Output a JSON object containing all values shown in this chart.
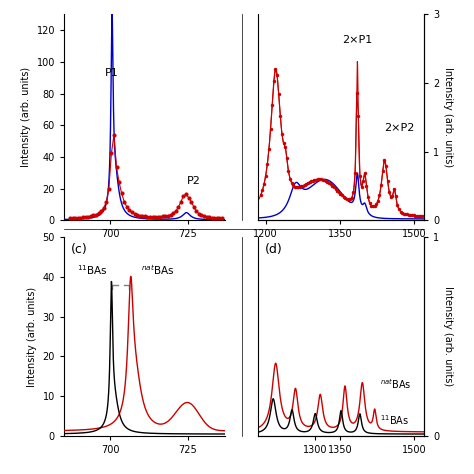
{
  "color_red": "#cc0000",
  "color_blue": "#0000cc",
  "color_black": "#000000",
  "color_gray": "#888888",
  "panel_a": {
    "xlim": [
      685,
      737
    ],
    "ylim": [
      0,
      130
    ],
    "yticks": [
      0,
      20,
      40,
      60,
      80,
      100,
      120
    ],
    "xtick_labels": [
      "",
      "700",
      "",
      "725",
      ""
    ],
    "xtick_vals": [
      690,
      700,
      710,
      725,
      730
    ],
    "ylabel": "Intensity (arb. units)"
  },
  "panel_b": {
    "xlim": [
      1185,
      1520
    ],
    "ylim_right": [
      0,
      3
    ],
    "yticks_right": [
      0,
      1,
      2,
      3
    ],
    "xtick_labels": [
      "1200",
      "1350",
      "1500"
    ],
    "xtick_vals": [
      1200,
      1350,
      1500
    ],
    "ylabel_right": "Intensity (arb. units)"
  },
  "panel_c": {
    "xlim": [
      685,
      737
    ],
    "ylim": [
      0,
      50
    ],
    "yticks": [
      0,
      10,
      20,
      30,
      40,
      50
    ],
    "xtick_labels": [
      "700",
      "725"
    ],
    "xtick_vals": [
      700,
      725
    ],
    "ylabel": "Intensity (arb. units)"
  },
  "panel_d": {
    "xlim": [
      1185,
      1520
    ],
    "ylim_right": [
      0,
      1
    ],
    "yticks_right": [
      0,
      1
    ],
    "xtick_labels": [
      "1300",
      "1350",
      "1500"
    ],
    "xtick_vals": [
      1300,
      1350,
      1500
    ],
    "ylabel_right": "Intensity (arb. units)"
  }
}
